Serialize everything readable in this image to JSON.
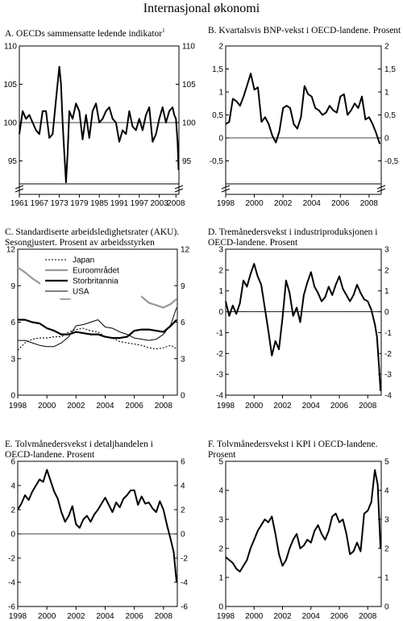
{
  "page_title": "Internasjonal økonomi",
  "chart_data": [
    {
      "id": "A",
      "type": "line",
      "title": "A. OECDs sammensatte ledende indikator",
      "title_footnote": "1",
      "x_start": 1961,
      "x_end": 2008.9,
      "xticks": [
        1961,
        1967,
        1973,
        1979,
        1985,
        1991,
        1997,
        2003,
        2008
      ],
      "ylim": [
        92,
        110
      ],
      "yticks": [
        95,
        100,
        105,
        110
      ],
      "ytick_labels": [
        "95",
        "100",
        "105",
        "110"
      ],
      "axis_break": true,
      "baseline": 100,
      "series": [
        {
          "color": "#000000",
          "width": 2,
          "x": [
            1961,
            1962,
            1963,
            1964,
            1965,
            1966,
            1967,
            1968,
            1969,
            1970,
            1971,
            1972,
            1973,
            1973.5,
            1974,
            1974.5,
            1975,
            1975.5,
            1976,
            1977,
            1978,
            1979,
            1980,
            1981,
            1982,
            1983,
            1984,
            1985,
            1986,
            1987,
            1988,
            1989,
            1990,
            1991,
            1992,
            1993,
            1994,
            1995,
            1996,
            1997,
            1998,
            1999,
            2000,
            2001,
            2002,
            2003,
            2004,
            2005,
            2006,
            2007,
            2007.5,
            2008,
            2008.5,
            2008.8
          ],
          "y": [
            98.5,
            101.5,
            100.5,
            101,
            100,
            99,
            98.5,
            101.5,
            101.5,
            98,
            98.5,
            103,
            107.3,
            105,
            100,
            96,
            92.2,
            96,
            101.5,
            100.5,
            102.5,
            101.5,
            97.8,
            101,
            98,
            101.5,
            102.5,
            100,
            100.5,
            101.5,
            102,
            100.5,
            100,
            97.5,
            99,
            98.5,
            101.5,
            99.5,
            99,
            100.5,
            99,
            101,
            102,
            97.5,
            98.5,
            100.5,
            102,
            100,
            101.5,
            102,
            101,
            100.5,
            97.5,
            93.8
          ]
        }
      ]
    },
    {
      "id": "B",
      "type": "line",
      "title": "B. Kvartalsvis BNP-vekst i OECD-landene. Prosent",
      "x_start": 1998,
      "x_end": 2008.85,
      "xticks": [
        1998,
        2000,
        2002,
        2004,
        2006,
        2008
      ],
      "ylim": [
        -1,
        2
      ],
      "yticks": [
        -0.5,
        0,
        0.5,
        1,
        1.5,
        2
      ],
      "ytick_labels": [
        "-0,5",
        "0",
        "0,5",
        "1",
        "1,5",
        "2"
      ],
      "axis_break": true,
      "baseline": 0,
      "series": [
        {
          "color": "#000000",
          "width": 2,
          "x": [
            1998.0,
            1998.25,
            1998.5,
            1998.75,
            1999.0,
            1999.25,
            1999.5,
            1999.75,
            2000.0,
            2000.25,
            2000.5,
            2000.75,
            2001.0,
            2001.25,
            2001.5,
            2001.75,
            2002.0,
            2002.25,
            2002.5,
            2002.75,
            2003.0,
            2003.25,
            2003.5,
            2003.75,
            2004.0,
            2004.25,
            2004.5,
            2004.75,
            2005.0,
            2005.25,
            2005.5,
            2005.75,
            2006.0,
            2006.25,
            2006.5,
            2006.75,
            2007.0,
            2007.25,
            2007.5,
            2007.75,
            2008.0,
            2008.25,
            2008.5,
            2008.75
          ],
          "y": [
            0.3,
            0.35,
            0.85,
            0.8,
            0.7,
            0.9,
            1.15,
            1.4,
            1.05,
            1.1,
            0.35,
            0.45,
            0.3,
            0.05,
            -0.1,
            0.15,
            0.65,
            0.7,
            0.65,
            0.3,
            0.2,
            0.45,
            1.13,
            0.95,
            0.9,
            0.65,
            0.6,
            0.5,
            0.55,
            0.7,
            0.6,
            0.55,
            0.9,
            0.95,
            0.5,
            0.6,
            0.75,
            0.65,
            0.9,
            0.4,
            0.45,
            0.3,
            0.1,
            -0.13
          ]
        }
      ]
    },
    {
      "id": "C",
      "type": "line",
      "title": "C. Standardiserte arbeidsledighetsrater (AKU). Sesongjustert. Prosent av arbeidsstyrken",
      "x_start": 1998,
      "x_end": 2008.95,
      "xticks": [
        1998,
        2000,
        2002,
        2004,
        2006,
        2008
      ],
      "ylim": [
        0,
        12
      ],
      "yticks": [
        0,
        3,
        6,
        9,
        12
      ],
      "ytick_labels": [
        "0",
        "3",
        "6",
        "9",
        "12"
      ],
      "legend_position": "top-right",
      "series": [
        {
          "name": "Japan",
          "color": "#000000",
          "width": 1.1,
          "dash": "2,2",
          "x": [
            1998,
            1998.5,
            1999,
            1999.5,
            2000,
            2000.5,
            2001,
            2001.5,
            2002,
            2002.5,
            2003,
            2003.5,
            2004,
            2004.5,
            2005,
            2005.5,
            2006,
            2006.5,
            2007,
            2007.5,
            2008,
            2008.5,
            2008.9
          ],
          "y": [
            3.7,
            4.3,
            4.6,
            4.7,
            4.7,
            4.8,
            4.8,
            5.2,
            5.4,
            5.5,
            5.3,
            5.2,
            4.8,
            4.7,
            4.4,
            4.3,
            4.2,
            4.1,
            3.9,
            3.8,
            3.9,
            4.1,
            3.8
          ]
        },
        {
          "name": "Euroområdet",
          "color": "#999999",
          "width": 2.2,
          "x": [
            1998,
            1998.5,
            1999,
            1999.5,
            2000,
            2000.5,
            2001,
            2001.5,
            2002,
            2002.5,
            2003,
            2003.5,
            2004,
            2004.5,
            2005,
            2005.5,
            2006,
            2006.5,
            2007,
            2007.5,
            2008,
            2008.5,
            2008.9
          ],
          "y": [
            10.5,
            10.1,
            9.6,
            9.2,
            8.7,
            8.3,
            7.9,
            7.9,
            8.2,
            8.5,
            8.7,
            8.8,
            8.9,
            8.9,
            8.9,
            8.8,
            8.4,
            8.1,
            7.6,
            7.4,
            7.2,
            7.5,
            7.9
          ]
        },
        {
          "name": "Storbritannia",
          "color": "#000000",
          "width": 2.2,
          "x": [
            1998,
            1998.5,
            1999,
            1999.5,
            2000,
            2000.5,
            2001,
            2001.5,
            2002,
            2002.5,
            2003,
            2003.5,
            2004,
            2004.5,
            2005,
            2005.5,
            2006,
            2006.5,
            2007,
            2007.5,
            2008,
            2008.5,
            2008.9
          ],
          "y": [
            6.2,
            6.2,
            6.0,
            5.9,
            5.5,
            5.3,
            5.0,
            5.0,
            5.2,
            5.1,
            5.0,
            5.0,
            4.8,
            4.7,
            4.7,
            4.8,
            5.3,
            5.4,
            5.4,
            5.3,
            5.2,
            5.7,
            6.2
          ]
        },
        {
          "name": "USA",
          "color": "#000000",
          "width": 1,
          "x": [
            1998,
            1998.5,
            1999,
            1999.5,
            2000,
            2000.5,
            2001,
            2001.5,
            2002,
            2002.5,
            2003,
            2003.5,
            2004,
            2004.5,
            2005,
            2005.5,
            2006,
            2006.5,
            2007,
            2007.5,
            2008,
            2008.5,
            2008.9
          ],
          "y": [
            4.5,
            4.5,
            4.3,
            4.1,
            4.0,
            4.0,
            4.3,
            4.8,
            5.7,
            5.8,
            6.0,
            6.2,
            5.6,
            5.5,
            5.2,
            5.0,
            4.7,
            4.6,
            4.5,
            4.6,
            5.0,
            5.8,
            7.2
          ]
        }
      ]
    },
    {
      "id": "D",
      "type": "line",
      "title": "D. Tremånedersvekst i industriproduksjonen i OECD-landene. Prosent",
      "x_start": 1998,
      "x_end": 2008.95,
      "xticks": [
        1998,
        2000,
        2002,
        2004,
        2006,
        2008
      ],
      "ylim": [
        -4,
        3
      ],
      "yticks": [
        -4,
        -3,
        -2,
        -1,
        0,
        1,
        2,
        3
      ],
      "ytick_labels": [
        "-4",
        "-3",
        "-2",
        "-1",
        "0",
        "1",
        "2",
        "3"
      ],
      "baseline": 0,
      "series": [
        {
          "color": "#000000",
          "width": 2,
          "x": [
            1998.0,
            1998.25,
            1998.5,
            1998.75,
            1999.0,
            1999.25,
            1999.5,
            1999.75,
            2000.0,
            2000.25,
            2000.5,
            2000.75,
            2001.0,
            2001.25,
            2001.5,
            2001.75,
            2002.0,
            2002.25,
            2002.5,
            2002.75,
            2003.0,
            2003.25,
            2003.5,
            2003.75,
            2004.0,
            2004.25,
            2004.5,
            2004.75,
            2005.0,
            2005.25,
            2005.5,
            2005.75,
            2006.0,
            2006.25,
            2006.5,
            2006.75,
            2007.0,
            2007.25,
            2007.5,
            2007.75,
            2008.0,
            2008.25,
            2008.5,
            2008.65,
            2008.8,
            2008.9
          ],
          "y": [
            0.5,
            -0.2,
            0.3,
            -0.1,
            0.4,
            1.5,
            1.2,
            1.8,
            2.3,
            1.7,
            1.3,
            0.2,
            -0.9,
            -2.1,
            -1.4,
            -1.8,
            -0.3,
            1.5,
            0.9,
            -0.2,
            0.2,
            -0.5,
            0.8,
            1.4,
            1.9,
            1.2,
            0.9,
            0.5,
            0.7,
            1.2,
            0.8,
            1.3,
            1.7,
            1.1,
            0.8,
            0.5,
            0.8,
            1.3,
            0.9,
            0.6,
            0.5,
            0.1,
            -0.6,
            -1.2,
            -2.7,
            -3.8
          ]
        }
      ]
    },
    {
      "id": "E",
      "type": "line",
      "title": "E. Tolvmånedersvekst i detaljhandelen i OECD-landene. Prosent",
      "x_start": 1998,
      "x_end": 2008.95,
      "xticks": [
        1998,
        2000,
        2002,
        2004,
        2006,
        2008
      ],
      "ylim": [
        -6,
        6
      ],
      "yticks": [
        -6,
        -4,
        -2,
        0,
        2,
        4,
        6
      ],
      "ytick_labels": [
        "-6",
        "-4",
        "-2",
        "0",
        "2",
        "4",
        "6"
      ],
      "baseline": 0,
      "series": [
        {
          "color": "#000000",
          "width": 2,
          "x": [
            1998.0,
            1998.25,
            1998.5,
            1998.75,
            1999.0,
            1999.25,
            1999.5,
            1999.75,
            2000.0,
            2000.25,
            2000.5,
            2000.75,
            2001.0,
            2001.25,
            2001.5,
            2001.75,
            2002.0,
            2002.25,
            2002.5,
            2002.75,
            2003.0,
            2003.25,
            2003.5,
            2003.75,
            2004.0,
            2004.25,
            2004.5,
            2004.75,
            2005.0,
            2005.25,
            2005.5,
            2005.75,
            2006.0,
            2006.25,
            2006.5,
            2006.75,
            2007.0,
            2007.25,
            2007.5,
            2007.75,
            2008.0,
            2008.25,
            2008.5,
            2008.7,
            2008.9
          ],
          "y": [
            2.0,
            2.5,
            3.2,
            2.8,
            3.5,
            4.0,
            4.5,
            4.3,
            5.3,
            4.4,
            3.5,
            2.9,
            1.8,
            1.0,
            1.5,
            2.3,
            0.8,
            0.5,
            1.2,
            1.5,
            1.0,
            1.6,
            2.0,
            2.5,
            3.0,
            2.4,
            1.8,
            2.6,
            2.2,
            2.9,
            3.2,
            3.6,
            3.6,
            2.4,
            3.1,
            2.5,
            2.6,
            2.1,
            1.8,
            2.7,
            2.0,
            0.7,
            -0.5,
            -1.5,
            -4.0
          ]
        }
      ]
    },
    {
      "id": "F",
      "type": "line",
      "title": "F. Tolvmånedersvekst i KPI i OECD-landene. Prosent",
      "x_start": 1998,
      "x_end": 2008.95,
      "xticks": [
        1998,
        2000,
        2002,
        2004,
        2006,
        2008
      ],
      "ylim": [
        0,
        5
      ],
      "yticks": [
        0,
        1,
        2,
        3,
        4,
        5
      ],
      "ytick_labels": [
        "0",
        "1",
        "2",
        "3",
        "4",
        "5"
      ],
      "series": [
        {
          "color": "#000000",
          "width": 2,
          "x": [
            1998.0,
            1998.25,
            1998.5,
            1998.75,
            1999.0,
            1999.25,
            1999.5,
            1999.75,
            2000.0,
            2000.25,
            2000.5,
            2000.75,
            2001.0,
            2001.25,
            2001.5,
            2001.75,
            2002.0,
            2002.25,
            2002.5,
            2002.75,
            2003.0,
            2003.25,
            2003.5,
            2003.75,
            2004.0,
            2004.25,
            2004.5,
            2004.75,
            2005.0,
            2005.25,
            2005.5,
            2005.75,
            2006.0,
            2006.25,
            2006.5,
            2006.75,
            2007.0,
            2007.25,
            2007.5,
            2007.75,
            2008.0,
            2008.25,
            2008.5,
            2008.7,
            2008.9
          ],
          "y": [
            1.7,
            1.6,
            1.5,
            1.3,
            1.2,
            1.4,
            1.6,
            2.0,
            2.3,
            2.6,
            2.8,
            3.0,
            2.9,
            3.1,
            2.5,
            1.8,
            1.4,
            1.6,
            2.0,
            2.3,
            2.5,
            2.0,
            2.1,
            2.3,
            2.2,
            2.6,
            2.8,
            2.5,
            2.3,
            2.6,
            3.1,
            3.2,
            2.9,
            3.0,
            2.5,
            1.8,
            1.9,
            2.2,
            1.9,
            3.2,
            3.3,
            3.6,
            4.7,
            4.2,
            2.0
          ]
        }
      ]
    }
  ]
}
